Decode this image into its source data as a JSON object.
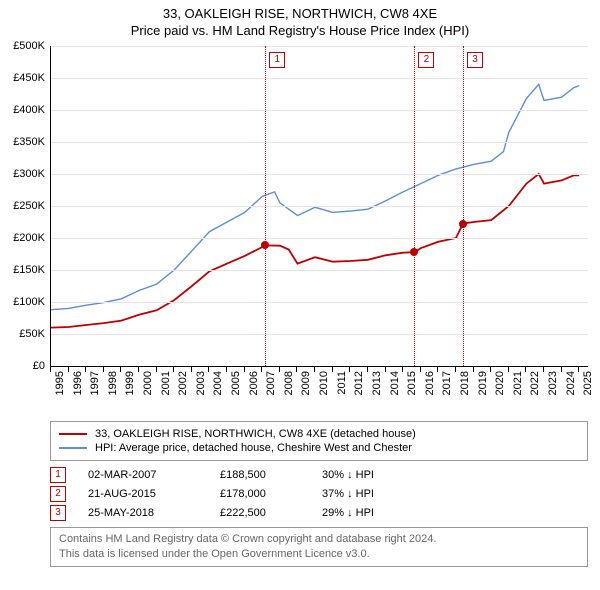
{
  "title_line1": "33, OAKLEIGH RISE, NORTHWICH, CW8 4XE",
  "title_line2": "Price paid vs. HM Land Registry's House Price Index (HPI)",
  "chart": {
    "type": "line",
    "y": {
      "min": 0,
      "max": 500000,
      "step": 50000,
      "labels": [
        "£0",
        "£50K",
        "£100K",
        "£150K",
        "£200K",
        "£250K",
        "£300K",
        "£350K",
        "£400K",
        "£450K",
        "£500K"
      ]
    },
    "x": {
      "min": 1995,
      "max": 2025.5,
      "ticks": [
        1995,
        1996,
        1997,
        1998,
        1999,
        2000,
        2001,
        2002,
        2003,
        2004,
        2005,
        2006,
        2007,
        2008,
        2009,
        2010,
        2011,
        2012,
        2013,
        2014,
        2015,
        2016,
        2017,
        2018,
        2019,
        2020,
        2021,
        2022,
        2023,
        2024,
        2025
      ]
    },
    "grid_color": "#e5e5e5",
    "background_color": "#ffffff",
    "series": [
      {
        "name": "HPI: Average price, detached house, Cheshire West and Chester",
        "color": "#5b8fd6",
        "width": 1.4,
        "data": [
          [
            1995,
            88000
          ],
          [
            1996,
            90000
          ],
          [
            1997,
            95000
          ],
          [
            1998,
            99000
          ],
          [
            1999,
            105000
          ],
          [
            2000,
            118000
          ],
          [
            2001,
            128000
          ],
          [
            2002,
            150000
          ],
          [
            2003,
            180000
          ],
          [
            2004,
            210000
          ],
          [
            2005,
            225000
          ],
          [
            2006,
            240000
          ],
          [
            2007,
            265000
          ],
          [
            2007.7,
            272000
          ],
          [
            2008,
            255000
          ],
          [
            2009,
            235000
          ],
          [
            2010,
            248000
          ],
          [
            2011,
            240000
          ],
          [
            2012,
            242000
          ],
          [
            2013,
            245000
          ],
          [
            2014,
            258000
          ],
          [
            2015,
            272000
          ],
          [
            2016,
            285000
          ],
          [
            2017,
            298000
          ],
          [
            2018,
            308000
          ],
          [
            2019,
            315000
          ],
          [
            2020,
            320000
          ],
          [
            2020.7,
            335000
          ],
          [
            2021,
            365000
          ],
          [
            2022,
            418000
          ],
          [
            2022.7,
            440000
          ],
          [
            2023,
            415000
          ],
          [
            2024,
            420000
          ],
          [
            2024.7,
            435000
          ],
          [
            2025,
            438000
          ]
        ]
      },
      {
        "name": "33, OAKLEIGH RISE, NORTHWICH, CW8 4XE (detached house)",
        "color": "#c00000",
        "width": 1.8,
        "data": [
          [
            1995,
            60000
          ],
          [
            1996,
            61000
          ],
          [
            1997,
            64000
          ],
          [
            1998,
            67000
          ],
          [
            1999,
            71000
          ],
          [
            2000,
            80000
          ],
          [
            2001,
            87000
          ],
          [
            2002,
            103000
          ],
          [
            2003,
            125000
          ],
          [
            2004,
            148000
          ],
          [
            2005,
            160000
          ],
          [
            2006,
            172000
          ],
          [
            2007,
            186000
          ],
          [
            2007.17,
            188500
          ],
          [
            2008,
            188000
          ],
          [
            2008.5,
            182000
          ],
          [
            2009,
            160000
          ],
          [
            2010,
            170000
          ],
          [
            2011,
            163000
          ],
          [
            2012,
            164000
          ],
          [
            2013,
            166000
          ],
          [
            2014,
            173000
          ],
          [
            2015,
            177000
          ],
          [
            2015.64,
            178000
          ],
          [
            2016,
            184000
          ],
          [
            2017,
            194000
          ],
          [
            2018,
            200000
          ],
          [
            2018.4,
            222500
          ],
          [
            2019,
            225000
          ],
          [
            2020,
            228000
          ],
          [
            2021,
            250000
          ],
          [
            2022,
            285000
          ],
          [
            2022.7,
            300000
          ],
          [
            2023,
            285000
          ],
          [
            2024,
            290000
          ],
          [
            2024.7,
            298000
          ],
          [
            2025,
            298000
          ]
        ]
      }
    ],
    "vlines": [
      {
        "x": 2007.17,
        "color": "#c00000"
      },
      {
        "x": 2015.64,
        "color": "#c00000"
      },
      {
        "x": 2018.4,
        "color": "#c00000"
      }
    ],
    "callouts": [
      {
        "n": "1",
        "x": 2007.17
      },
      {
        "n": "2",
        "x": 2015.64
      },
      {
        "n": "3",
        "x": 2018.4
      }
    ],
    "markers": [
      {
        "x": 2007.17,
        "y": 188500,
        "color": "#c00000"
      },
      {
        "x": 2015.64,
        "y": 178000,
        "color": "#c00000"
      },
      {
        "x": 2018.4,
        "y": 222500,
        "color": "#c00000"
      }
    ]
  },
  "legend": {
    "items": [
      {
        "color": "#c00000",
        "label": "33, OAKLEIGH RISE, NORTHWICH, CW8 4XE (detached house)"
      },
      {
        "color": "#5b8fd6",
        "label": "HPI: Average price, detached house, Cheshire West and Chester"
      }
    ]
  },
  "sales": [
    {
      "n": "1",
      "date": "02-MAR-2007",
      "price": "£188,500",
      "diff": "30% ↓ HPI"
    },
    {
      "n": "2",
      "date": "21-AUG-2015",
      "price": "£178,000",
      "diff": "37% ↓ HPI"
    },
    {
      "n": "3",
      "date": "25-MAY-2018",
      "price": "£222,500",
      "diff": "29% ↓ HPI"
    }
  ],
  "attribution": {
    "line1": "Contains HM Land Registry data © Crown copyright and database right 2024.",
    "line2": "This data is licensed under the Open Government Licence v3.0."
  }
}
